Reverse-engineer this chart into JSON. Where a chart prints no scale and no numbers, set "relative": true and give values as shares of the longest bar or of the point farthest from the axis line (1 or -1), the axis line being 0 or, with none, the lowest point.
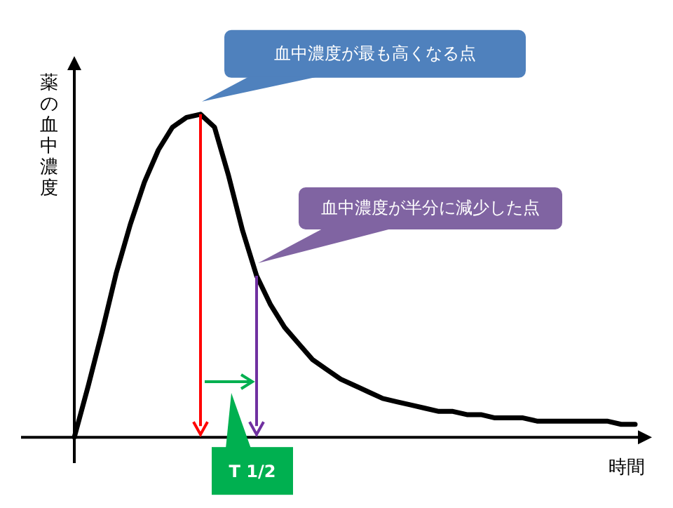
{
  "chart_data": {
    "type": "line",
    "relative": true,
    "xlabel": "時間",
    "ylabel": "薬の血中濃度",
    "marker": "none",
    "line_style": "solid",
    "categories": [
      null,
      null,
      null,
      null,
      null,
      null,
      null,
      null,
      null,
      null,
      null,
      null,
      null,
      null,
      null,
      null,
      null,
      null,
      null,
      null,
      null,
      null,
      null,
      null,
      null,
      null,
      null,
      null,
      null,
      null,
      null,
      null,
      null,
      null,
      null,
      null,
      null,
      null,
      null,
      null,
      null
    ],
    "series": [
      {
        "color": "#000000",
        "values": [
          0,
          0.16,
          0.33,
          0.51,
          0.66,
          0.79,
          0.89,
          0.96,
          0.99,
          1,
          0.96,
          0.81,
          0.64,
          0.5,
          0.41,
          0.34,
          0.29,
          0.24,
          0.21,
          0.18,
          0.16,
          0.14,
          0.12,
          0.11,
          0.1,
          0.09,
          0.08,
          0.08,
          0.07,
          0.07,
          0.06,
          0.06,
          0.06,
          0.05,
          0.05,
          0.05,
          0.05,
          0.05,
          0.05,
          0.04,
          0.04
        ]
      }
    ],
    "annotations": [
      "血中濃度が最も高くなる点",
      "血中濃度が半分に減少した点",
      "T 1/2"
    ]
  }
}
